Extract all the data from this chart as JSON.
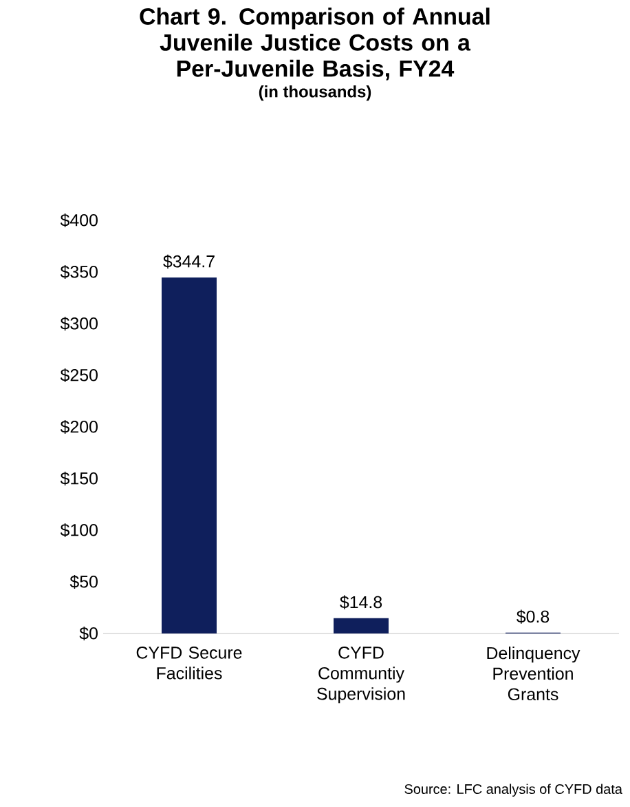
{
  "chart_data": {
    "type": "bar",
    "title": "Chart 9. Comparison of Annual Juvenile Justice Costs on a Per-Juvenile Basis, FY24",
    "subtitle": "(in thousands)",
    "categories": [
      "CYFD Secure Facilities",
      "CYFD Communtiy Supervision",
      "Delinquency Prevention Grants"
    ],
    "values": [
      344.7,
      14.8,
      0.8
    ],
    "value_labels": [
      "$344.7",
      "$14.8",
      "$0.8"
    ],
    "color": "#0f1f5c",
    "ylim": [
      0,
      400
    ],
    "yticks": [
      {
        "value": 0,
        "label": "$0"
      },
      {
        "value": 50,
        "label": "$50"
      },
      {
        "value": 100,
        "label": "$100"
      },
      {
        "value": 150,
        "label": "$150"
      },
      {
        "value": 200,
        "label": "$200"
      },
      {
        "value": 250,
        "label": "$250"
      },
      {
        "value": 300,
        "label": "$300"
      },
      {
        "value": 350,
        "label": "$350"
      },
      {
        "value": 400,
        "label": "$400"
      }
    ],
    "annotations": [
      "Source: LFC analysis of CYFD data"
    ]
  }
}
